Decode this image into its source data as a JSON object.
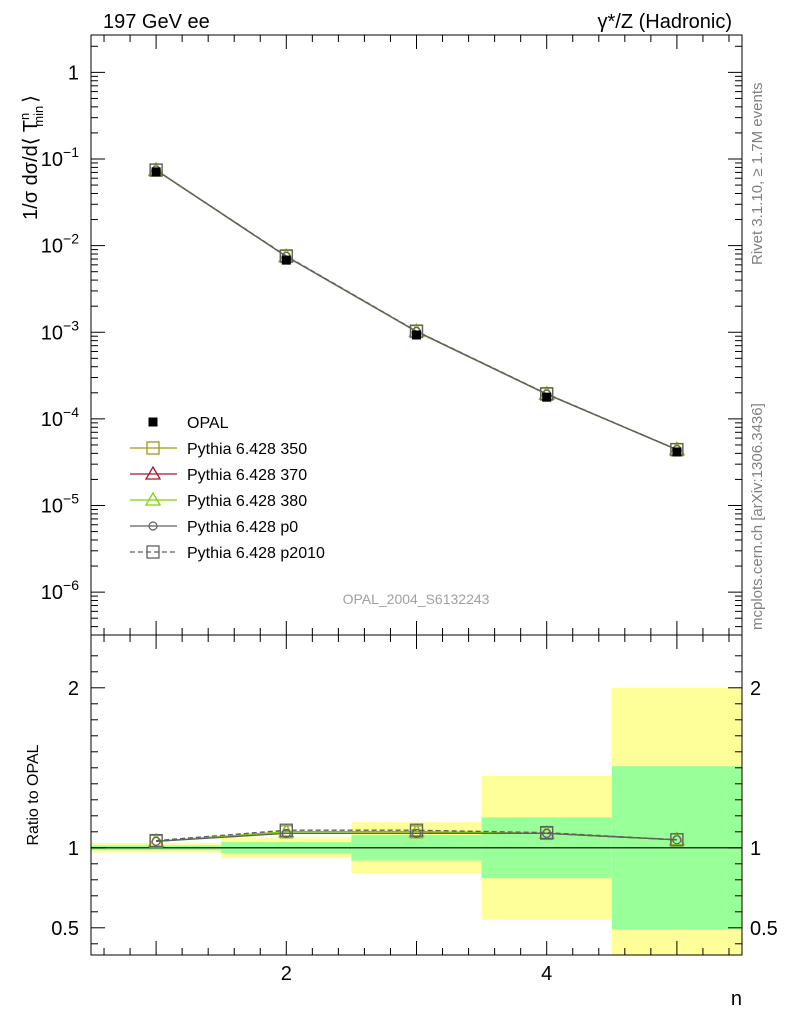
{
  "header": {
    "left": "197 GeV ee",
    "right": "γ*/Z (Hadronic)"
  },
  "side_text": {
    "top": "Rivet 3.1.10, ≥ 1.7M events",
    "bottom": "mcplots.cern.ch [arXiv:1306.3436]"
  },
  "watermark": "OPAL_2004_S6132243",
  "chart_data": [
    {
      "type": "line",
      "panel": "main",
      "yscale": "log",
      "ylabel_parts": {
        "a": "1/σ dσ/d⟨ T",
        "sup": "n",
        "sub": "min",
        "b": "⟩"
      },
      "xlim": [
        0.5,
        5.5
      ],
      "ylim": [
        3.2e-07,
        2.7
      ],
      "y_ticks": [
        {
          "value": 1,
          "base": "1",
          "exp": ""
        },
        {
          "value": 0.1,
          "base": "10",
          "exp": "−1"
        },
        {
          "value": 0.01,
          "base": "10",
          "exp": "−2"
        },
        {
          "value": 0.001,
          "base": "10",
          "exp": "−3"
        },
        {
          "value": 0.0001,
          "base": "10",
          "exp": "−4"
        },
        {
          "value": 1e-05,
          "base": "10",
          "exp": "−5"
        },
        {
          "value": 1e-06,
          "base": "10",
          "exp": "−6"
        }
      ],
      "x": [
        1,
        2,
        3,
        4,
        5
      ],
      "data": {
        "name": "OPAL",
        "values": [
          0.071,
          0.0068,
          0.00093,
          0.000178,
          4.15e-05
        ],
        "errors": [
          0.0012,
          0.0006,
          8e-05,
          1e-05,
          1.2e-06
        ]
      },
      "series": [
        {
          "name": "Pythia 6.428 350",
          "values": [
            0.0745,
            0.0075,
            0.00102,
            0.000193,
            4.42e-05
          ],
          "color": "#9a9a1c",
          "marker": "square-open",
          "dash": false
        },
        {
          "name": "Pythia 6.428 370",
          "values": [
            0.0745,
            0.0075,
            0.00102,
            0.000193,
            4.42e-05
          ],
          "color": "#a01a2a",
          "marker": "triangle-open",
          "dash": false
        },
        {
          "name": "Pythia 6.428 380",
          "values": [
            0.0745,
            0.0075,
            0.00102,
            0.000193,
            4.42e-05
          ],
          "color": "#7fd400",
          "marker": "triangle-open",
          "dash": false
        },
        {
          "name": "Pythia 6.428 p0",
          "values": [
            0.0745,
            0.0075,
            0.00102,
            0.000193,
            4.42e-05
          ],
          "color": "#606060",
          "marker": "circle-open",
          "dash": false
        },
        {
          "name": "Pythia 6.428 p2010",
          "values": [
            0.0745,
            0.0076,
            0.00103,
            0.000195,
            4.42e-05
          ],
          "color": "#606060",
          "marker": "square-open",
          "dash": true
        }
      ],
      "legend": "left-center"
    },
    {
      "type": "line",
      "panel": "ratio",
      "ylabel": "Ratio to OPAL",
      "xlabel": "n",
      "xlim": [
        0.5,
        5.5
      ],
      "ylim": [
        0.33,
        2.33
      ],
      "y_ticks": [
        0.5,
        1,
        2
      ],
      "x_ticks": [
        2,
        4
      ],
      "bands": [
        {
          "x0": 0.5,
          "x1": 1.5,
          "inner": [
            0.985,
            1.015
          ],
          "outer": [
            0.97,
            1.03
          ]
        },
        {
          "x0": 1.5,
          "x1": 2.5,
          "inner": [
            0.965,
            1.035
          ],
          "outer": [
            0.935,
            1.065
          ]
        },
        {
          "x0": 2.5,
          "x1": 3.5,
          "inner": [
            0.92,
            1.08
          ],
          "outer": [
            0.84,
            1.16
          ]
        },
        {
          "x0": 3.5,
          "x1": 4.5,
          "inner": [
            0.81,
            1.19
          ],
          "outer": [
            0.55,
            1.45
          ]
        },
        {
          "x0": 4.5,
          "x1": 5.5,
          "inner": [
            0.49,
            1.51
          ],
          "outer": [
            0.33,
            2.0
          ]
        }
      ],
      "x": [
        1,
        2,
        3,
        4,
        5
      ],
      "series": [
        {
          "name": "Pythia 6.428 350",
          "values": [
            1.04,
            1.1,
            1.1,
            1.09,
            1.05
          ]
        },
        {
          "name": "Pythia 6.428 370",
          "values": [
            1.04,
            1.1,
            1.1,
            1.09,
            1.05
          ]
        },
        {
          "name": "Pythia 6.428 380",
          "values": [
            1.04,
            1.1,
            1.1,
            1.09,
            1.05
          ]
        },
        {
          "name": "Pythia 6.428 p0",
          "values": [
            1.04,
            1.09,
            1.09,
            1.09,
            1.05
          ]
        },
        {
          "name": "Pythia 6.428 p2010",
          "values": [
            1.045,
            1.11,
            1.11,
            1.095,
            1.05
          ]
        }
      ],
      "band_colors": {
        "inner": "#99ff99",
        "outer": "#ffff99"
      }
    }
  ]
}
